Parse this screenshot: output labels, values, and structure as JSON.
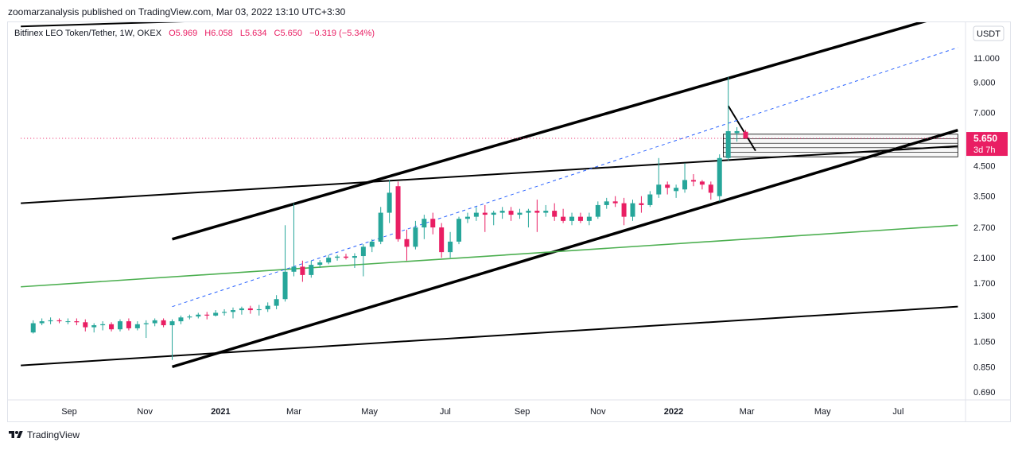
{
  "header": {
    "publisher_line": "zoomarzanalysis published on TradingView.com, Mar 03, 2022 13:10 UTC+3:30"
  },
  "legend": {
    "symbol": "Bitfinex LEO Token/Tether, 1W, OKEX",
    "open": "O5.969",
    "high": "H6.058",
    "low": "L5.634",
    "close": "C5.650",
    "change": "−0.319 (−5.34%)"
  },
  "footer": {
    "brand": "TradingView",
    "logo_icon": "tradingview-logo-icon"
  },
  "colors": {
    "up": "#26a69a",
    "down": "#e91e63",
    "price_tag": "#e91e63",
    "trendline": "#000000",
    "green_line": "#4caf50",
    "dashed_line": "#2962ff"
  },
  "chart_data": {
    "type": "candlestick",
    "currency": "USDT",
    "yscale": "log",
    "ylim": [
      0.6,
      15.5
    ],
    "x_ticks": [
      {
        "label": "Sep",
        "date": "2020-09-01"
      },
      {
        "label": "Nov",
        "date": "2020-11-01"
      },
      {
        "label": "2021",
        "date": "2021-01-01",
        "bold": true
      },
      {
        "label": "Mar",
        "date": "2021-03-01"
      },
      {
        "label": "May",
        "date": "2021-05-01"
      },
      {
        "label": "Jul",
        "date": "2021-07-01"
      },
      {
        "label": "Sep",
        "date": "2021-09-01"
      },
      {
        "label": "Nov",
        "date": "2021-11-01"
      },
      {
        "label": "2022",
        "date": "2022-01-01",
        "bold": true
      },
      {
        "label": "Mar",
        "date": "2022-03-01"
      },
      {
        "label": "May",
        "date": "2022-05-01"
      },
      {
        "label": "Jul",
        "date": "2022-07-01"
      }
    ],
    "y_ticks": [
      "11.000",
      "9.000",
      "7.000",
      "4.500",
      "3.500",
      "2.700",
      "2.100",
      "1.700",
      "1.300",
      "1.050",
      "0.850",
      "0.690"
    ],
    "last_price": "5.650",
    "countdown": "3d 7h",
    "candles": [
      {
        "d": "2020-08-03",
        "o": 1.13,
        "h": 1.25,
        "l": 1.12,
        "c": 1.22
      },
      {
        "d": "2020-08-10",
        "o": 1.22,
        "h": 1.27,
        "l": 1.2,
        "c": 1.24
      },
      {
        "d": "2020-08-17",
        "o": 1.24,
        "h": 1.28,
        "l": 1.21,
        "c": 1.25
      },
      {
        "d": "2020-08-24",
        "o": 1.25,
        "h": 1.27,
        "l": 1.22,
        "c": 1.24
      },
      {
        "d": "2020-08-31",
        "o": 1.24,
        "h": 1.27,
        "l": 1.21,
        "c": 1.24
      },
      {
        "d": "2020-09-07",
        "o": 1.24,
        "h": 1.27,
        "l": 1.2,
        "c": 1.23
      },
      {
        "d": "2020-09-14",
        "o": 1.23,
        "h": 1.26,
        "l": 1.14,
        "c": 1.18
      },
      {
        "d": "2020-09-21",
        "o": 1.18,
        "h": 1.22,
        "l": 1.13,
        "c": 1.2
      },
      {
        "d": "2020-09-28",
        "o": 1.2,
        "h": 1.24,
        "l": 1.15,
        "c": 1.21
      },
      {
        "d": "2020-10-05",
        "o": 1.21,
        "h": 1.23,
        "l": 1.14,
        "c": 1.16
      },
      {
        "d": "2020-10-12",
        "o": 1.16,
        "h": 1.26,
        "l": 1.14,
        "c": 1.24
      },
      {
        "d": "2020-10-19",
        "o": 1.24,
        "h": 1.27,
        "l": 1.15,
        "c": 1.17
      },
      {
        "d": "2020-10-26",
        "o": 1.17,
        "h": 1.24,
        "l": 1.15,
        "c": 1.21
      },
      {
        "d": "2020-11-02",
        "o": 1.21,
        "h": 1.25,
        "l": 1.08,
        "c": 1.22
      },
      {
        "d": "2020-11-09",
        "o": 1.22,
        "h": 1.27,
        "l": 1.19,
        "c": 1.25
      },
      {
        "d": "2020-11-16",
        "o": 1.25,
        "h": 1.27,
        "l": 1.18,
        "c": 1.2
      },
      {
        "d": "2020-11-23",
        "o": 1.2,
        "h": 1.26,
        "l": 0.9,
        "c": 1.24
      },
      {
        "d": "2020-11-30",
        "o": 1.24,
        "h": 1.3,
        "l": 1.21,
        "c": 1.28
      },
      {
        "d": "2020-12-07",
        "o": 1.28,
        "h": 1.31,
        "l": 1.26,
        "c": 1.29
      },
      {
        "d": "2020-12-14",
        "o": 1.29,
        "h": 1.33,
        "l": 1.27,
        "c": 1.31
      },
      {
        "d": "2020-12-21",
        "o": 1.31,
        "h": 1.34,
        "l": 1.26,
        "c": 1.3
      },
      {
        "d": "2020-12-28",
        "o": 1.3,
        "h": 1.36,
        "l": 1.29,
        "c": 1.33
      },
      {
        "d": "2021-01-04",
        "o": 1.33,
        "h": 1.37,
        "l": 1.3,
        "c": 1.34
      },
      {
        "d": "2021-01-11",
        "o": 1.34,
        "h": 1.39,
        "l": 1.27,
        "c": 1.36
      },
      {
        "d": "2021-01-18",
        "o": 1.36,
        "h": 1.4,
        "l": 1.31,
        "c": 1.38
      },
      {
        "d": "2021-01-25",
        "o": 1.38,
        "h": 1.41,
        "l": 1.32,
        "c": 1.36
      },
      {
        "d": "2021-02-01",
        "o": 1.36,
        "h": 1.42,
        "l": 1.3,
        "c": 1.37
      },
      {
        "d": "2021-02-08",
        "o": 1.37,
        "h": 1.45,
        "l": 1.34,
        "c": 1.41
      },
      {
        "d": "2021-02-15",
        "o": 1.41,
        "h": 1.54,
        "l": 1.37,
        "c": 1.49
      },
      {
        "d": "2021-02-22",
        "o": 1.49,
        "h": 2.75,
        "l": 1.46,
        "c": 1.87
      },
      {
        "d": "2021-03-01",
        "o": 1.87,
        "h": 3.3,
        "l": 1.8,
        "c": 1.95
      },
      {
        "d": "2021-03-08",
        "o": 1.95,
        "h": 2.05,
        "l": 1.72,
        "c": 1.82
      },
      {
        "d": "2021-03-15",
        "o": 1.82,
        "h": 2.05,
        "l": 1.78,
        "c": 1.98
      },
      {
        "d": "2021-03-22",
        "o": 1.98,
        "h": 2.06,
        "l": 1.93,
        "c": 2.02
      },
      {
        "d": "2021-03-29",
        "o": 2.02,
        "h": 2.15,
        "l": 1.99,
        "c": 2.1
      },
      {
        "d": "2021-04-05",
        "o": 2.1,
        "h": 2.15,
        "l": 2.05,
        "c": 2.12
      },
      {
        "d": "2021-04-12",
        "o": 2.12,
        "h": 2.17,
        "l": 2.07,
        "c": 2.1
      },
      {
        "d": "2021-04-19",
        "o": 2.1,
        "h": 2.18,
        "l": 1.93,
        "c": 2.13
      },
      {
        "d": "2021-04-26",
        "o": 2.13,
        "h": 2.35,
        "l": 1.8,
        "c": 2.3
      },
      {
        "d": "2021-05-03",
        "o": 2.3,
        "h": 2.45,
        "l": 2.2,
        "c": 2.4
      },
      {
        "d": "2021-05-10",
        "o": 2.4,
        "h": 3.2,
        "l": 2.35,
        "c": 3.05
      },
      {
        "d": "2021-05-17",
        "o": 3.05,
        "h": 4.0,
        "l": 2.8,
        "c": 3.6
      },
      {
        "d": "2021-05-24",
        "o": 3.8,
        "h": 3.95,
        "l": 2.4,
        "c": 2.45
      },
      {
        "d": "2021-05-31",
        "o": 2.45,
        "h": 2.65,
        "l": 2.05,
        "c": 2.3
      },
      {
        "d": "2021-06-07",
        "o": 2.3,
        "h": 2.85,
        "l": 2.25,
        "c": 2.7
      },
      {
        "d": "2021-06-14",
        "o": 2.7,
        "h": 3.0,
        "l": 2.45,
        "c": 2.9
      },
      {
        "d": "2021-06-21",
        "o": 2.9,
        "h": 3.05,
        "l": 2.55,
        "c": 2.7
      },
      {
        "d": "2021-06-28",
        "o": 2.7,
        "h": 2.8,
        "l": 2.1,
        "c": 2.2
      },
      {
        "d": "2021-07-05",
        "o": 2.2,
        "h": 2.6,
        "l": 2.1,
        "c": 2.4
      },
      {
        "d": "2021-07-12",
        "o": 2.4,
        "h": 2.95,
        "l": 2.35,
        "c": 2.9
      },
      {
        "d": "2021-07-19",
        "o": 2.9,
        "h": 3.05,
        "l": 2.8,
        "c": 2.95
      },
      {
        "d": "2021-07-26",
        "o": 2.95,
        "h": 3.2,
        "l": 2.85,
        "c": 3.05
      },
      {
        "d": "2021-08-02",
        "o": 3.05,
        "h": 3.25,
        "l": 2.6,
        "c": 3.0
      },
      {
        "d": "2021-08-09",
        "o": 3.0,
        "h": 3.1,
        "l": 2.75,
        "c": 3.05
      },
      {
        "d": "2021-08-16",
        "o": 3.05,
        "h": 3.2,
        "l": 2.9,
        "c": 3.1
      },
      {
        "d": "2021-08-23",
        "o": 3.1,
        "h": 3.2,
        "l": 2.85,
        "c": 3.0
      },
      {
        "d": "2021-08-30",
        "o": 3.0,
        "h": 3.15,
        "l": 2.9,
        "c": 3.05
      },
      {
        "d": "2021-09-06",
        "o": 3.05,
        "h": 3.15,
        "l": 2.7,
        "c": 3.1
      },
      {
        "d": "2021-09-13",
        "o": 3.1,
        "h": 3.4,
        "l": 2.6,
        "c": 3.05
      },
      {
        "d": "2021-09-20",
        "o": 3.05,
        "h": 3.25,
        "l": 2.95,
        "c": 3.1
      },
      {
        "d": "2021-09-27",
        "o": 3.1,
        "h": 3.3,
        "l": 2.85,
        "c": 2.95
      },
      {
        "d": "2021-10-04",
        "o": 2.95,
        "h": 3.15,
        "l": 2.8,
        "c": 2.85
      },
      {
        "d": "2021-10-11",
        "o": 2.85,
        "h": 3.05,
        "l": 2.75,
        "c": 2.95
      },
      {
        "d": "2021-10-18",
        "o": 2.95,
        "h": 3.05,
        "l": 2.8,
        "c": 2.85
      },
      {
        "d": "2021-10-25",
        "o": 2.85,
        "h": 3.05,
        "l": 2.75,
        "c": 2.95
      },
      {
        "d": "2021-11-01",
        "o": 2.95,
        "h": 3.35,
        "l": 2.9,
        "c": 3.25
      },
      {
        "d": "2021-11-08",
        "o": 3.25,
        "h": 3.45,
        "l": 3.15,
        "c": 3.35
      },
      {
        "d": "2021-11-15",
        "o": 3.35,
        "h": 3.5,
        "l": 3.2,
        "c": 3.3
      },
      {
        "d": "2021-11-22",
        "o": 3.3,
        "h": 3.45,
        "l": 2.75,
        "c": 2.95
      },
      {
        "d": "2021-11-29",
        "o": 2.95,
        "h": 3.4,
        "l": 2.85,
        "c": 3.3
      },
      {
        "d": "2021-12-06",
        "o": 3.3,
        "h": 3.5,
        "l": 3.05,
        "c": 3.25
      },
      {
        "d": "2021-12-13",
        "o": 3.25,
        "h": 3.65,
        "l": 3.2,
        "c": 3.55
      },
      {
        "d": "2021-12-20",
        "o": 3.55,
        "h": 4.8,
        "l": 3.45,
        "c": 3.85
      },
      {
        "d": "2021-12-27",
        "o": 3.85,
        "h": 3.95,
        "l": 3.55,
        "c": 3.75
      },
      {
        "d": "2022-01-03",
        "o": 3.65,
        "h": 3.85,
        "l": 3.45,
        "c": 3.75
      },
      {
        "d": "2022-01-10",
        "o": 3.7,
        "h": 4.6,
        "l": 3.6,
        "c": 4.0
      },
      {
        "d": "2022-01-17",
        "o": 4.0,
        "h": 4.2,
        "l": 3.8,
        "c": 3.95
      },
      {
        "d": "2022-01-24",
        "o": 3.95,
        "h": 4.0,
        "l": 3.7,
        "c": 3.85
      },
      {
        "d": "2022-01-31",
        "o": 3.85,
        "h": 3.95,
        "l": 3.4,
        "c": 3.6
      },
      {
        "d": "2022-02-07",
        "o": 3.5,
        "h": 4.95,
        "l": 3.35,
        "c": 4.8
      },
      {
        "d": "2022-02-14",
        "o": 4.8,
        "h": 9.4,
        "l": 4.7,
        "c": 6.0
      },
      {
        "d": "2022-02-21",
        "o": 5.9,
        "h": 6.2,
        "l": 5.5,
        "c": 6.0
      },
      {
        "d": "2022-02-28",
        "o": 5.969,
        "h": 6.058,
        "l": 5.634,
        "c": 5.65
      }
    ],
    "trendlines": [
      {
        "style": "thick",
        "p1": {
          "d": "2020-11-23",
          "v": 2.45
        },
        "p2": {
          "d": "2022-07-31",
          "v": 15.3
        }
      },
      {
        "style": "thick",
        "p1": {
          "d": "2020-11-23",
          "v": 0.85
        },
        "p2": {
          "d": "2022-08-18",
          "v": 6.05
        }
      },
      {
        "style": "medium",
        "p1": {
          "d": "2020-07-24",
          "v": 3.3
        },
        "p2": {
          "d": "2022-08-18",
          "v": 5.3
        }
      },
      {
        "style": "medium",
        "p1": {
          "d": "2020-07-24",
          "v": 0.86
        },
        "p2": {
          "d": "2022-08-18",
          "v": 1.4
        }
      },
      {
        "style": "medium",
        "p1": {
          "d": "2020-07-24",
          "v": 14.3
        },
        "p2": {
          "d": "2021-04-10",
          "v": 15.5
        }
      },
      {
        "style": "medium",
        "p1": {
          "d": "2022-02-14",
          "v": 7.4
        },
        "p2": {
          "d": "2022-03-08",
          "v": 5.1
        }
      },
      {
        "style": "green",
        "p1": {
          "d": "2020-07-24",
          "v": 1.65
        },
        "p2": {
          "d": "2022-08-18",
          "v": 2.75
        }
      },
      {
        "style": "dashed",
        "p1": {
          "d": "2020-11-23",
          "v": 1.4
        },
        "p2": {
          "d": "2022-08-18",
          "v": 12.0
        }
      },
      {
        "style": "dotted-red",
        "p1": {
          "d": "2020-07-24",
          "v": 5.65
        },
        "p2": {
          "d": "2022-08-18",
          "v": 5.65
        }
      }
    ],
    "zones": [
      {
        "d1": "2022-02-10",
        "d2": "2022-08-18",
        "v1": 4.85,
        "v2": 5.85
      }
    ]
  }
}
